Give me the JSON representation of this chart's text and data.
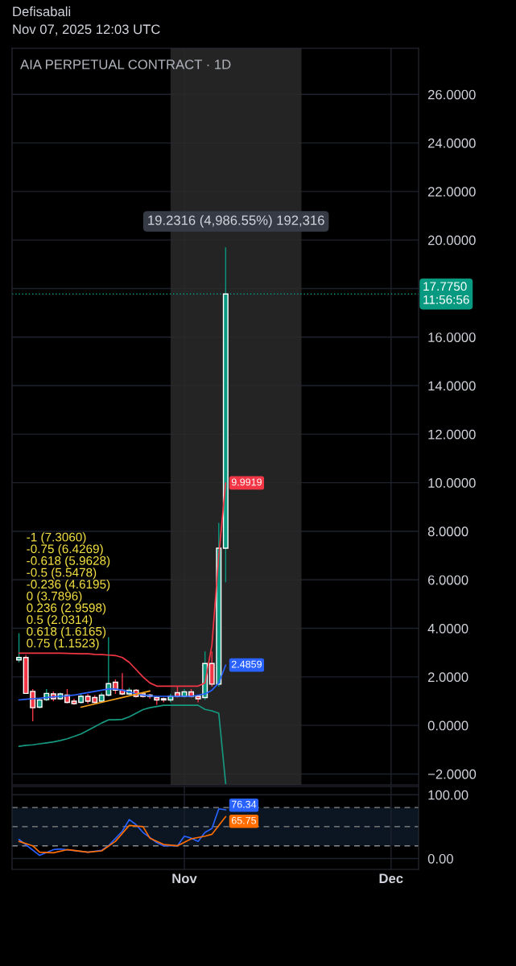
{
  "chart_data": [
    {
      "type": "candlestick",
      "title": "AIA PERPETUAL CONTRACT · 1D",
      "annotations": [
        "Defisabali",
        "Nov 07, 2025 12:03 UTC",
        "-1 (7.3060)",
        "-0.75 (6.4269)",
        "-0.618 (5.9628)",
        "-0.5 (5.5478)",
        "-0.236 (4.6195)",
        "0 (3.7896)",
        "0.236 (2.9598)",
        "0.5 (2.0314)",
        "0.618 (1.6165)",
        "0.75 (1.1523)"
      ],
      "x": [
        "2025-10-08",
        "2025-10-09",
        "2025-10-10",
        "2025-10-11",
        "2025-10-12",
        "2025-10-13",
        "2025-10-14",
        "2025-10-15",
        "2025-10-16",
        "2025-10-17",
        "2025-10-18",
        "2025-10-19",
        "2025-10-20",
        "2025-10-21",
        "2025-10-22",
        "2025-10-23",
        "2025-10-24",
        "2025-10-25",
        "2025-10-26",
        "2025-10-27",
        "2025-10-28",
        "2025-10-29",
        "2025-10-30",
        "2025-10-31",
        "2025-11-01",
        "2025-11-02",
        "2025-11-03",
        "2025-11-04",
        "2025-11-05",
        "2025-11-06",
        "2025-11-07"
      ],
      "ohlc": [
        [
          2.7,
          3.8,
          2.6,
          2.8
        ],
        [
          2.8,
          2.9,
          1.3,
          1.32
        ],
        [
          1.4,
          1.5,
          0.17,
          0.73
        ],
        [
          0.75,
          1.1,
          0.7,
          1.05
        ],
        [
          1.06,
          1.5,
          1.0,
          1.32
        ],
        [
          1.3,
          1.4,
          1.0,
          1.1
        ],
        [
          1.1,
          1.35,
          1.05,
          1.3
        ],
        [
          1.25,
          1.5,
          0.9,
          0.95
        ],
        [
          1.0,
          1.1,
          0.85,
          0.9
        ],
        [
          0.95,
          1.3,
          0.9,
          1.2
        ],
        [
          1.2,
          1.3,
          0.9,
          1.0
        ],
        [
          1.15,
          1.25,
          0.9,
          0.95
        ],
        [
          1.0,
          1.35,
          0.95,
          1.25
        ],
        [
          1.25,
          3.64,
          1.2,
          1.72
        ],
        [
          1.78,
          1.9,
          1.3,
          1.45
        ],
        [
          1.45,
          2.15,
          1.25,
          1.3
        ],
        [
          1.3,
          1.55,
          1.25,
          1.45
        ],
        [
          1.45,
          1.5,
          1.15,
          1.2
        ],
        [
          1.3,
          1.35,
          1.15,
          1.2
        ],
        [
          1.25,
          1.3,
          1.1,
          1.2
        ],
        [
          1.15,
          1.2,
          0.85,
          1.05
        ],
        [
          1.1,
          1.15,
          0.95,
          1.05
        ],
        [
          1.05,
          1.3,
          0.95,
          1.2
        ],
        [
          1.35,
          1.6,
          1.15,
          1.2
        ],
        [
          1.2,
          1.5,
          1.15,
          1.38
        ],
        [
          1.38,
          1.5,
          1.15,
          1.2
        ],
        [
          1.2,
          1.25,
          0.95,
          1.1
        ],
        [
          1.15,
          3.05,
          1.05,
          2.55
        ],
        [
          2.55,
          3.05,
          1.6,
          1.7
        ],
        [
          1.7,
          8.35,
          1.6,
          7.3
        ],
        [
          7.3,
          19.7,
          5.9,
          17.775
        ]
      ],
      "colors": [
        "#089981",
        "#f23645",
        "#f23645",
        "#089981",
        "#089981",
        "#f23645",
        "#089981",
        "#f23645",
        "#f23645",
        "#089981",
        "#f23645",
        "#f23645",
        "#089981",
        "#089981",
        "#f23645",
        "#f23645",
        "#089981",
        "#f23645",
        "#f23645",
        "#f23645",
        "#f23645",
        "#f23645",
        "#089981",
        "#f23645",
        "#089981",
        "#f23645",
        "#f23645",
        "#089981",
        "#f23645",
        "#089981",
        "#089981"
      ],
      "series": [
        {
          "type": "line",
          "color": "#f23645",
          "values": [
            2.98,
            2.98,
            2.98,
            2.98,
            2.98,
            2.98,
            2.98,
            2.97,
            2.96,
            2.95,
            2.95,
            2.93,
            2.92,
            2.9,
            2.88,
            2.8,
            2.6,
            2.3,
            2.0,
            1.75,
            1.62,
            1.62,
            1.62,
            1.62,
            1.62,
            1.62,
            1.62,
            1.75,
            3.3,
            7.0,
            9.9919
          ],
          "value_labels": [
            null,
            null,
            null,
            null,
            null,
            null,
            null,
            null,
            null,
            null,
            null,
            null,
            null,
            null,
            null,
            null,
            null,
            null,
            null,
            null,
            null,
            null,
            null,
            null,
            null,
            null,
            null,
            null,
            null,
            null,
            "9.9919"
          ]
        },
        {
          "type": "line",
          "color": "#2962ff",
          "values": [
            1.05,
            1.08,
            1.1,
            1.12,
            1.15,
            1.18,
            1.2,
            1.22,
            1.25,
            1.3,
            1.35,
            1.4,
            1.45,
            1.5,
            1.5,
            1.45,
            1.38,
            1.3,
            1.25,
            1.22,
            1.2,
            1.2,
            1.2,
            1.2,
            1.2,
            1.2,
            1.25,
            1.3,
            1.45,
            1.75,
            2.4859
          ],
          "value_labels": [
            null,
            null,
            null,
            null,
            null,
            null,
            null,
            null,
            null,
            null,
            null,
            null,
            null,
            null,
            null,
            null,
            null,
            null,
            null,
            null,
            null,
            null,
            null,
            null,
            null,
            null,
            null,
            null,
            null,
            null,
            "2.4859"
          ]
        },
        {
          "type": "line",
          "color": "#159980",
          "values": [
            -0.86,
            -0.82,
            -0.8,
            -0.76,
            -0.72,
            -0.68,
            -0.62,
            -0.55,
            -0.45,
            -0.35,
            -0.2,
            -0.05,
            0.1,
            0.23,
            0.23,
            0.25,
            0.35,
            0.5,
            0.65,
            0.73,
            0.78,
            0.83,
            0.83,
            0.83,
            0.83,
            0.83,
            0.83,
            0.66,
            0.6,
            0.5,
            -2.4
          ]
        },
        {
          "type": "line",
          "color": "#f7a21b",
          "x": [
            "2025-10-17",
            "2025-10-27"
          ],
          "values": [
            0.75,
            1.42
          ]
        }
      ],
      "ref_lines": [
        {
          "axis": "y",
          "value": 17.775,
          "label": "17.7750\n11:56:56",
          "color": "#089981",
          "line_style": "dotted"
        }
      ],
      "bands": [
        {
          "axis": "x",
          "from": "2025-10-30",
          "to": "2025-11-18",
          "label": "19.2316 (4,986.55%) 192,316",
          "color": "#2a2a2a"
        }
      ],
      "xlim": [
        "2025-10-07",
        "2025-12-05"
      ],
      "ylim": [
        -2.45,
        27.9
      ],
      "yticks": [
        {
          "value": -2,
          "label": "−2.0000"
        },
        {
          "value": 0,
          "label": "0.0000"
        },
        {
          "value": 2,
          "label": "2.0000"
        },
        {
          "value": 4,
          "label": "4.0000"
        },
        {
          "value": 6,
          "label": "6.0000"
        },
        {
          "value": 8,
          "label": "8.0000"
        },
        {
          "value": 10,
          "label": "10.0000"
        },
        {
          "value": 12,
          "label": "12.0000"
        },
        {
          "value": 14,
          "label": "14.0000"
        },
        {
          "value": 16,
          "label": "16.0000"
        },
        {
          "value": 18,
          "label": null
        },
        {
          "value": 20,
          "label": "20.0000"
        },
        {
          "value": 22,
          "label": "22.0000"
        },
        {
          "value": 24,
          "label": "24.0000"
        },
        {
          "value": 26,
          "label": "26.0000"
        }
      ],
      "xticks": [
        {
          "value": "2025-11-01",
          "label": null
        },
        {
          "value": "2025-12-01",
          "label": null
        }
      ],
      "tick_labels": "y",
      "grid": true
    },
    {
      "type": "line",
      "series": [
        {
          "color": "#2962ff",
          "x": [
            "2025-10-08",
            "2025-10-11",
            "2025-10-13",
            "2025-10-14",
            "2025-10-18",
            "2025-10-20",
            "2025-10-21",
            "2025-10-23",
            "2025-10-24",
            "2025-10-25",
            "2025-10-26",
            "2025-10-28",
            "2025-10-29",
            "2025-10-31",
            "2025-11-01",
            "2025-11-02",
            "2025-11-03",
            "2025-11-04",
            "2025-11-05",
            "2025-11-06",
            "2025-11-07"
          ],
          "values": [
            30,
            5,
            14,
            15,
            10,
            13,
            20,
            43,
            61,
            53,
            41,
            25,
            20,
            20,
            35,
            32,
            27,
            41,
            47,
            78,
            76.34
          ],
          "value_labels": [
            null,
            null,
            null,
            null,
            null,
            null,
            null,
            null,
            null,
            null,
            null,
            null,
            null,
            null,
            null,
            null,
            null,
            null,
            null,
            null,
            "76.34"
          ]
        },
        {
          "color": "#ff6d00",
          "x": [
            "2025-10-08",
            "2025-10-10",
            "2025-10-11",
            "2025-10-13",
            "2025-10-15",
            "2025-10-18",
            "2025-10-20",
            "2025-10-22",
            "2025-10-24",
            "2025-10-26",
            "2025-10-27",
            "2025-10-29",
            "2025-10-31",
            "2025-11-02",
            "2025-11-04",
            "2025-11-05",
            "2025-11-07"
          ],
          "values": [
            27,
            20,
            10,
            9,
            14,
            10,
            12,
            27,
            52,
            50,
            32,
            22,
            20,
            31,
            35,
            38,
            65.75
          ],
          "value_labels": [
            null,
            null,
            null,
            null,
            null,
            null,
            null,
            null,
            null,
            null,
            null,
            null,
            null,
            null,
            null,
            null,
            "65.75"
          ]
        }
      ],
      "ref_lines": [
        {
          "axis": "y",
          "value": 80,
          "color": "#8a8a8a",
          "line_style": "dashed"
        },
        {
          "axis": "y",
          "value": 50,
          "color": "#8a8a8a",
          "line_style": "dashed"
        },
        {
          "axis": "y",
          "value": 20,
          "color": "#8a8a8a",
          "line_style": "dashed"
        }
      ],
      "bands": [
        {
          "axis": "y",
          "from": 20,
          "to": 80,
          "color": "#0b1622"
        }
      ],
      "xlim": [
        "2025-10-07",
        "2025-12-05"
      ],
      "ylim": [
        -17,
        113
      ],
      "yticks": [
        {
          "value": 100,
          "label": "100.00"
        },
        {
          "value": 0,
          "label": "0.00"
        }
      ],
      "xticks": [
        {
          "value": "2025-11-01",
          "label": "Nov"
        },
        {
          "value": "2025-12-01",
          "label": "Dec"
        }
      ],
      "grid": true
    }
  ]
}
